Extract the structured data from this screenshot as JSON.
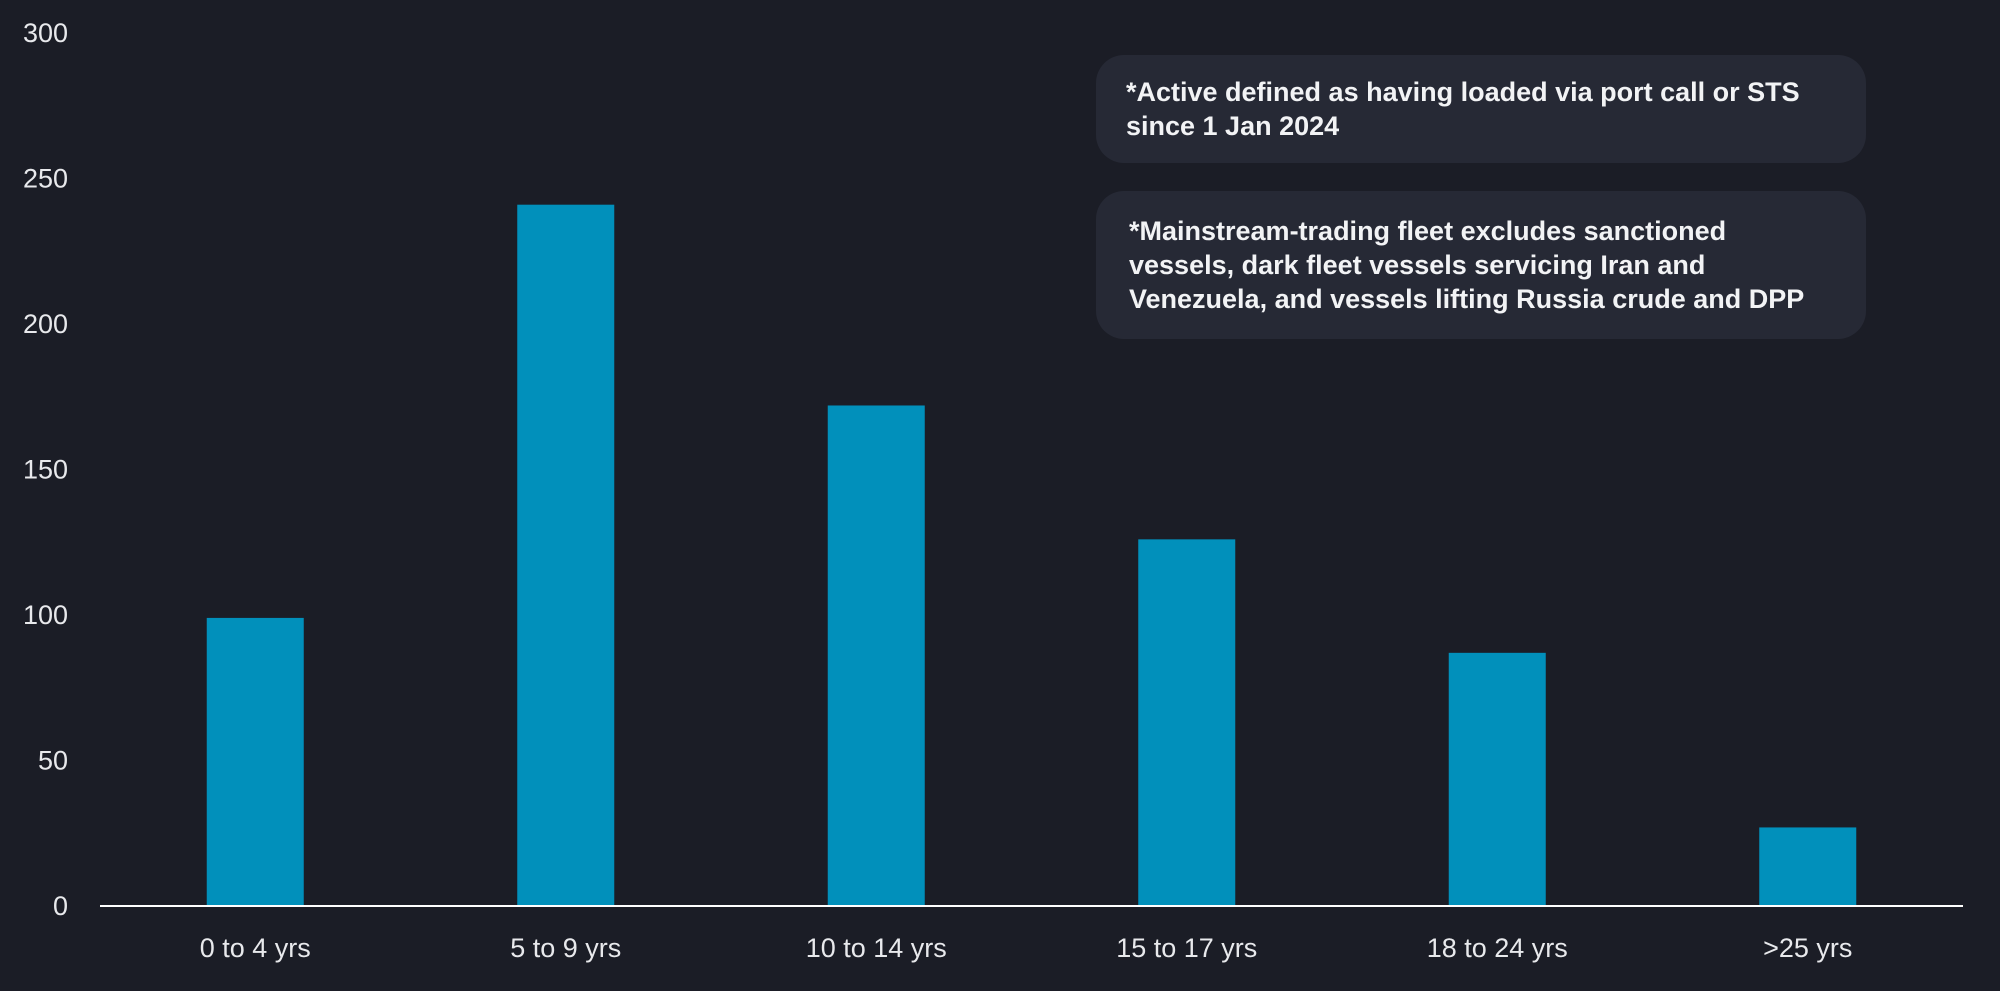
{
  "colors": {
    "background": "#1b1d26",
    "bar": "#0190bb",
    "axis_text": "#e8e9ec",
    "axis_line": "#ffffff",
    "note_box": "#262935"
  },
  "notes": {
    "active": "*Active defined as having loaded via port call or STS since 1 Jan 2024",
    "fleet": "*Mainstream-trading fleet excludes sanctioned vessels, dark fleet vessels servicing Iran and Venezuela, and vessels lifting Russia crude and DPP"
  },
  "chart_data": {
    "type": "bar",
    "categories": [
      "0 to 4 yrs",
      "5 to 9 yrs",
      "10 to 14 yrs",
      "15 to 17 yrs",
      "18 to 24 yrs",
      ">25 yrs"
    ],
    "values": [
      99,
      241,
      172,
      126,
      87,
      27
    ],
    "title": "",
    "xlabel": "",
    "ylabel": "",
    "ylim": [
      0,
      300
    ],
    "yticks": [
      0,
      50,
      100,
      150,
      200,
      250,
      300
    ],
    "grid": false,
    "legend": "none"
  }
}
